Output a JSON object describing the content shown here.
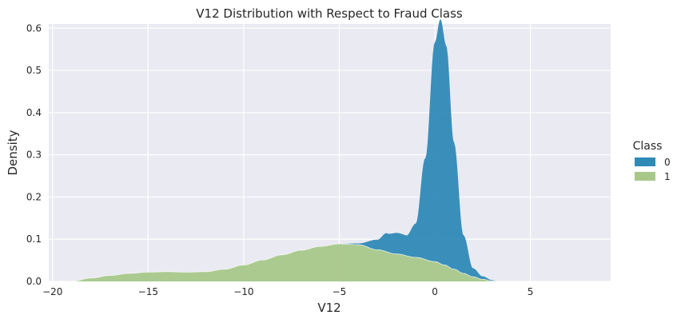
{
  "chart_data": {
    "type": "area",
    "title": "V12 Distribution with Respect to Fraud Class",
    "xlabel": "V12",
    "ylabel": "Density",
    "xlim": [
      -20.2,
      9.2
    ],
    "ylim": [
      0,
      0.61
    ],
    "xticks": [
      -20,
      -15,
      -10,
      -5,
      0,
      5
    ],
    "xtick_labels": [
      "−20",
      "−15",
      "−10",
      "−5",
      "0",
      "5"
    ],
    "yticks": [
      0.0,
      0.1,
      0.2,
      0.3,
      0.4,
      0.5,
      0.6
    ],
    "ytick_labels": [
      "0.0",
      "0.1",
      "0.2",
      "0.3",
      "0.4",
      "0.5",
      "0.6"
    ],
    "grid": true,
    "stacked": true,
    "legend": {
      "title": "Class",
      "placement": "right",
      "entries": [
        "0",
        "1"
      ]
    },
    "series": [
      {
        "name": "1",
        "color": "#a8c88a",
        "x": [
          -19.0,
          -18.0,
          -17.0,
          -16.0,
          -15.0,
          -14.0,
          -13.0,
          -12.0,
          -11.0,
          -10.0,
          -9.0,
          -8.0,
          -7.0,
          -6.0,
          -5.0,
          -4.0,
          -3.0,
          -2.0,
          -1.0,
          0.0,
          0.5,
          1.0,
          1.5,
          2.0,
          2.5,
          3.0,
          3.3
        ],
        "values": [
          0.0,
          0.008,
          0.014,
          0.019,
          0.022,
          0.023,
          0.022,
          0.023,
          0.029,
          0.039,
          0.051,
          0.063,
          0.074,
          0.083,
          0.089,
          0.087,
          0.075,
          0.065,
          0.057,
          0.047,
          0.039,
          0.029,
          0.019,
          0.011,
          0.005,
          0.001,
          0.0
        ]
      },
      {
        "name": "0",
        "color": "#2f8ab6",
        "x": [
          -5.0,
          -4.0,
          -3.0,
          -2.5,
          -2.0,
          -1.5,
          -1.0,
          -0.5,
          0.0,
          0.3,
          0.6,
          1.0,
          1.5,
          2.0,
          2.5,
          3.0,
          3.3
        ],
        "values": [
          0.0,
          0.003,
          0.024,
          0.044,
          0.05,
          0.048,
          0.08,
          0.24,
          0.52,
          0.58,
          0.52,
          0.3,
          0.09,
          0.02,
          0.007,
          0.002,
          0.0
        ]
      }
    ]
  }
}
